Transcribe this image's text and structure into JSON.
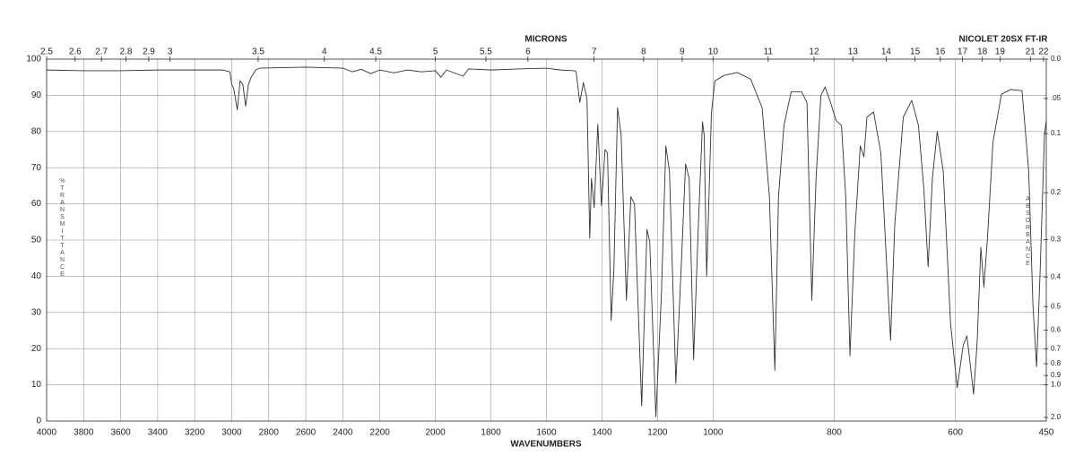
{
  "chart_data": {
    "type": "line",
    "title": "NICOLET 20SX FT-IR",
    "xlabel": "WAVENUMBERS",
    "x2label": "MICRONS",
    "ylabel": "%TRANSMITTANCE",
    "y2label": "ABSORBANCE",
    "color": "#333333",
    "grid": true,
    "xlim": [
      4000,
      450
    ],
    "x_breaks": [
      2200,
      1000
    ],
    "xticks": [
      4000,
      3800,
      3600,
      3400,
      3200,
      3000,
      2800,
      2600,
      2400,
      2200,
      2000,
      1800,
      1600,
      1400,
      1200,
      1000,
      800,
      600,
      450
    ],
    "x2scale": "reciprocal",
    "x2ticks": [
      2.5,
      2.6,
      2.7,
      2.8,
      2.9,
      3,
      3.5,
      4,
      4.5,
      5,
      5.5,
      6,
      7,
      8,
      9,
      10,
      11,
      12,
      13,
      14,
      15,
      16,
      17,
      18,
      19,
      21,
      22
    ],
    "ylim": [
      0,
      100
    ],
    "yticks": [
      0,
      10,
      20,
      30,
      40,
      50,
      60,
      70,
      80,
      90,
      100
    ],
    "y2scale": "absorbance",
    "y2lim": [
      0,
      2
    ],
    "y2ticks": [
      {
        "value": 0,
        "label": "0.0"
      },
      {
        "value": 0.05,
        "label": ".05"
      },
      0.1,
      0.2,
      0.3,
      0.4,
      0.5,
      0.6,
      0.7,
      0.8,
      0.9,
      {
        "value": 1,
        "label": "1.0"
      },
      {
        "value": 2,
        "label": "2.0"
      }
    ],
    "x": [
      4000,
      3800,
      3600,
      3400,
      3200,
      3050,
      3010,
      3000,
      2990,
      2970,
      2955,
      2940,
      2925,
      2910,
      2895,
      2870,
      2850,
      2600,
      2400,
      2350,
      2300,
      2250,
      2200,
      2150,
      2100,
      2050,
      2000,
      1980,
      1960,
      1900,
      1880,
      1800,
      1700,
      1600,
      1550,
      1500,
      1493,
      1480,
      1467,
      1454,
      1444,
      1438,
      1428,
      1415,
      1402,
      1389,
      1380,
      1367,
      1357,
      1344,
      1331,
      1312,
      1296,
      1283,
      1257,
      1238,
      1228,
      1206,
      1186,
      1170,
      1157,
      1134,
      1115,
      1099,
      1086,
      1070,
      1054,
      1038,
      1032,
      1023,
      1006,
      997,
      982,
      960,
      938,
      919,
      907,
      898,
      892,
      883,
      871,
      854,
      845,
      837,
      830,
      822,
      815,
      806,
      797,
      788,
      781,
      774,
      766,
      757,
      751,
      746,
      735,
      723,
      707,
      700,
      686,
      672,
      661,
      652,
      645,
      638,
      630,
      620,
      608,
      597,
      587,
      581,
      575,
      570,
      564,
      558,
      553,
      547,
      538,
      524,
      509,
      490,
      479,
      472,
      466,
      460,
      453,
      450
    ],
    "values": [
      97,
      96.8,
      96.8,
      97,
      97,
      97,
      96.5,
      93,
      92,
      86,
      94,
      93,
      87,
      93,
      95,
      97,
      97.5,
      97.8,
      97.5,
      96.5,
      97.2,
      96,
      97,
      96.2,
      97,
      96.5,
      96.8,
      95,
      97,
      95.3,
      97.3,
      97,
      97.3,
      97.5,
      97,
      96.8,
      96.5,
      88,
      93.5,
      89,
      50.5,
      67,
      59,
      82,
      59.5,
      75,
      74,
      27.7,
      42,
      86.6,
      79,
      33.4,
      62,
      60,
      4.2,
      53,
      49.5,
      1.2,
      35,
      76,
      69,
      10.4,
      42,
      71,
      67,
      17,
      52,
      82.7,
      79,
      40,
      85,
      94,
      95.5,
      96.3,
      94.5,
      86.6,
      62,
      14,
      62,
      81.7,
      91,
      91,
      88,
      33.4,
      67,
      90,
      92.3,
      88,
      83,
      81.7,
      62,
      18,
      52,
      76,
      73,
      84,
      85.4,
      74,
      22.3,
      54.5,
      84,
      88.6,
      81.7,
      64,
      42.6,
      67,
      80,
      69,
      27,
      9.2,
      21,
      23.5,
      15,
      7.4,
      22,
      48,
      37,
      50.7,
      77,
      90.3,
      91.6,
      91.3,
      69,
      32,
      15,
      42,
      79,
      83
    ]
  }
}
